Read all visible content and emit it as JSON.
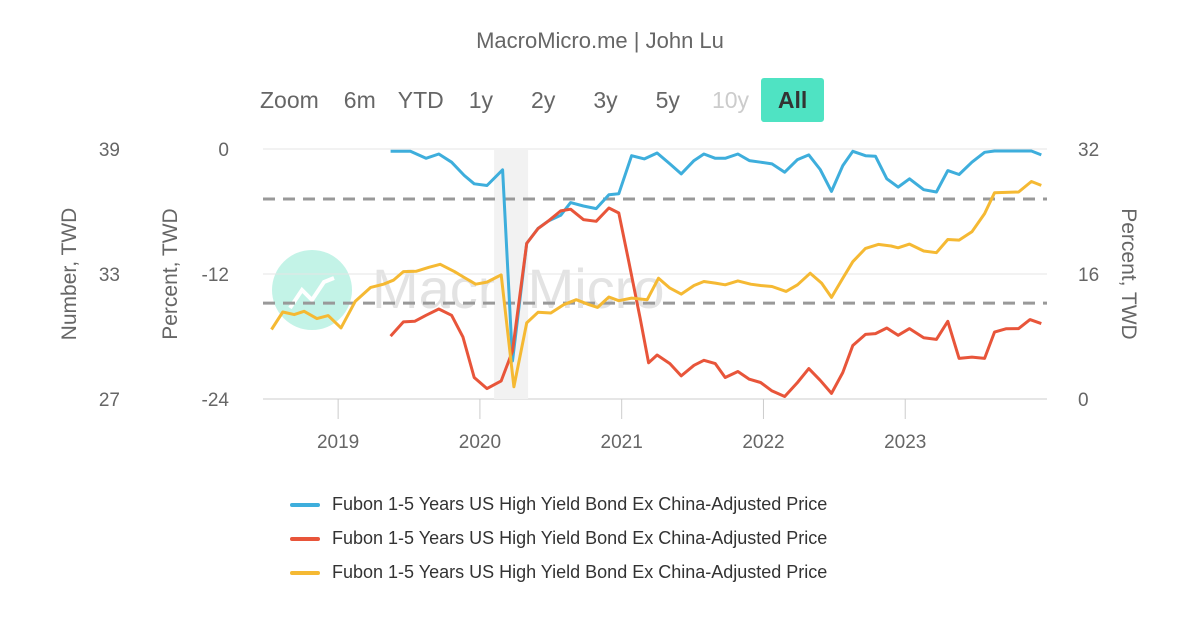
{
  "header": {
    "title": "MacroMicro.me | John Lu"
  },
  "zoom": {
    "label": "Zoom",
    "buttons": [
      {
        "label": "6m",
        "state": "normal"
      },
      {
        "label": "YTD",
        "state": "normal"
      },
      {
        "label": "1y",
        "state": "normal"
      },
      {
        "label": "2y",
        "state": "normal"
      },
      {
        "label": "3y",
        "state": "normal"
      },
      {
        "label": "5y",
        "state": "normal"
      },
      {
        "label": "10y",
        "state": "disabled"
      },
      {
        "label": "All",
        "state": "active"
      }
    ]
  },
  "watermark": {
    "text": "MacroMicro"
  },
  "chart_data": {
    "type": "line",
    "xlim": [
      2018.47,
      2024.0
    ],
    "x_ticks": [
      "2019",
      "2020",
      "2021",
      "2022",
      "2023"
    ],
    "y_axes": [
      {
        "id": "number",
        "title": "Number, TWD",
        "ticks": [
          "39",
          "33",
          "27"
        ],
        "range": [
          27,
          39
        ],
        "side": "left-outer"
      },
      {
        "id": "percent_left",
        "title": "Percent, TWD",
        "ticks": [
          "0",
          "-12",
          "-24"
        ],
        "range": [
          -24,
          0
        ],
        "side": "left-inner"
      },
      {
        "id": "percent_right",
        "title": "Percent, TWD",
        "ticks": [
          "32",
          "16",
          "0"
        ],
        "range": [
          0,
          32
        ],
        "side": "right"
      }
    ],
    "plot_band": {
      "from": 2020.1,
      "to": 2020.34
    },
    "plot_lines": {
      "axis": "percent_left",
      "values": [
        -4.8,
        -14.8
      ]
    },
    "grid": true,
    "legend_position": "bottom",
    "series": [
      {
        "name": "Fubon 1-5 Years US High Yield Bond Ex China-Adjusted Price",
        "color": "#3eaedc",
        "axis": "percent_left",
        "x": [
          2019.37,
          2019.51,
          2019.62,
          2019.71,
          2019.8,
          2019.89,
          2019.96,
          2020.05,
          2020.16,
          2020.23,
          2020.33,
          2020.41,
          2020.48,
          2020.57,
          2020.64,
          2020.73,
          2020.82,
          2020.91,
          2020.98,
          2021.07,
          2021.16,
          2021.25,
          2021.34,
          2021.42,
          2021.51,
          2021.58,
          2021.66,
          2021.73,
          2021.82,
          2021.9,
          2021.98,
          2022.06,
          2022.15,
          2022.24,
          2022.32,
          2022.4,
          2022.48,
          2022.56,
          2022.63,
          2022.72,
          2022.79,
          2022.87,
          2022.95,
          2023.03,
          2023.13,
          2023.22,
          2023.3,
          2023.38,
          2023.47,
          2023.56,
          2023.63,
          2023.89,
          2023.96
        ],
        "y": [
          -0.22,
          -0.22,
          -0.89,
          -0.48,
          -1.27,
          -2.54,
          -3.34,
          -3.5,
          -2.0,
          -20.35,
          -9.06,
          -7.63,
          -6.93,
          -6.36,
          -5.15,
          -5.47,
          -5.72,
          -4.39,
          -4.29,
          -0.64,
          -0.95,
          -0.38,
          -1.43,
          -2.39,
          -1.11,
          -0.48,
          -0.89,
          -0.89,
          -0.48,
          -1.11,
          -1.27,
          -1.43,
          -2.23,
          -1.02,
          -0.57,
          -1.97,
          -4.07,
          -1.59,
          -0.22,
          -0.64,
          -0.7,
          -2.86,
          -3.66,
          -2.86,
          -3.91,
          -4.13,
          -2.07,
          -2.45,
          -1.27,
          -0.32,
          -0.19,
          -0.19,
          -0.57
        ]
      },
      {
        "name": "Fubon 1-5 Years US High Yield Bond Ex China-Adjusted Price",
        "color": "#e8553a",
        "axis": "number",
        "x": [
          2019.37,
          2019.46,
          2019.54,
          2019.62,
          2019.71,
          2019.8,
          2019.88,
          2019.96,
          2020.05,
          2020.15,
          2020.23,
          2020.33,
          2020.41,
          2020.48,
          2020.57,
          2020.64,
          2020.73,
          2020.82,
          2020.91,
          2020.98,
          2021.05,
          2021.13,
          2021.19,
          2021.25,
          2021.34,
          2021.42,
          2021.51,
          2021.58,
          2021.66,
          2021.73,
          2021.82,
          2021.9,
          2021.98,
          2022.06,
          2022.15,
          2022.24,
          2022.32,
          2022.4,
          2022.48,
          2022.56,
          2022.63,
          2022.72,
          2022.79,
          2022.87,
          2022.95,
          2023.03,
          2023.13,
          2023.22,
          2023.3,
          2023.38,
          2023.47,
          2023.56,
          2023.63,
          2023.71,
          2023.8,
          2023.88,
          2023.96
        ],
        "y": [
          30.02,
          30.7,
          30.73,
          31.02,
          31.32,
          31.02,
          29.98,
          28.03,
          27.5,
          27.87,
          29.3,
          34.47,
          35.18,
          35.53,
          36.03,
          36.11,
          35.61,
          35.53,
          36.17,
          35.93,
          33.59,
          30.89,
          28.74,
          29.11,
          28.7,
          28.11,
          28.62,
          28.86,
          28.7,
          28.03,
          28.32,
          27.95,
          27.79,
          27.39,
          27.12,
          27.79,
          28.46,
          27.9,
          27.27,
          28.27,
          29.57,
          30.1,
          30.14,
          30.41,
          30.06,
          30.38,
          29.94,
          29.86,
          30.73,
          28.95,
          29.01,
          28.95,
          30.21,
          30.37,
          30.38,
          30.81,
          30.62
        ]
      },
      {
        "name": "Fubon 1-5 Years US High Yield Bond Ex China-Adjusted Price",
        "color": "#f5b933",
        "axis": "percent_right",
        "x": [
          2018.53,
          2018.61,
          2018.69,
          2018.76,
          2018.85,
          2018.93,
          2019.02,
          2019.12,
          2019.23,
          2019.32,
          2019.39,
          2019.46,
          2019.55,
          2019.64,
          2019.72,
          2019.82,
          2019.89,
          2019.97,
          2020.05,
          2020.15,
          2020.24,
          2020.33,
          2020.41,
          2020.5,
          2020.59,
          2020.68,
          2020.77,
          2020.83,
          2020.91,
          2020.98,
          2021.07,
          2021.18,
          2021.26,
          2021.34,
          2021.42,
          2021.51,
          2021.58,
          2021.66,
          2021.73,
          2021.82,
          2021.91,
          2021.98,
          2022.06,
          2022.16,
          2022.24,
          2022.33,
          2022.41,
          2022.48,
          2022.56,
          2022.63,
          2022.72,
          2022.81,
          2022.9,
          2022.95,
          2023.03,
          2023.13,
          2023.22,
          2023.3,
          2023.38,
          2023.47,
          2023.56,
          2023.63,
          2023.71,
          2023.8,
          2023.89,
          2023.96
        ],
        "y": [
          8.89,
          11.14,
          10.8,
          11.22,
          10.29,
          10.67,
          9.1,
          12.49,
          14.28,
          14.7,
          15.21,
          16.31,
          16.35,
          16.86,
          17.24,
          16.31,
          15.55,
          14.7,
          14.96,
          15.89,
          1.56,
          9.74,
          11.1,
          11.01,
          12.07,
          12.71,
          12.07,
          11.73,
          13.05,
          12.58,
          12.92,
          12.71,
          15.46,
          14.19,
          13.43,
          14.53,
          15.04,
          14.83,
          14.62,
          15.12,
          14.7,
          14.53,
          14.4,
          13.77,
          14.62,
          16.1,
          14.83,
          13.0,
          15.46,
          17.58,
          19.28,
          19.79,
          19.58,
          19.36,
          19.83,
          18.94,
          18.73,
          20.42,
          20.34,
          21.4,
          23.73,
          26.4,
          26.45,
          26.49,
          27.84,
          27.34
        ]
      }
    ]
  }
}
